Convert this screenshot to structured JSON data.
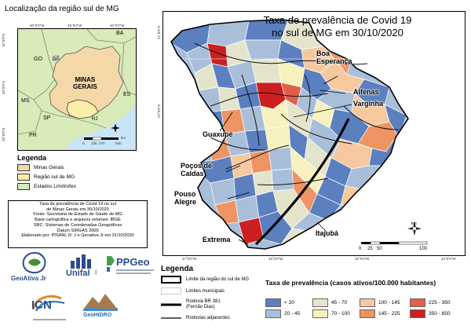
{
  "inset": {
    "title": "Localização da região sul de MG",
    "coords_top": [
      "50°0'0\"W",
      "45°0'0\"W",
      "40°0'0\"W"
    ],
    "coords_left": [
      "15°0'0\"S",
      "20°0'0\"S",
      "25°0'0\"S"
    ],
    "state_labels": {
      "ba": "BA",
      "go": "GO",
      "df": "DF",
      "es": "ES",
      "ms": "MS",
      "sp": "SP",
      "rj": "RJ",
      "pr": "PR",
      "mg": "MINAS\nGERAIS"
    },
    "scale_ticks": [
      "0",
      "135",
      "270",
      "540"
    ],
    "scale_unit": "km"
  },
  "legend_left": {
    "title": "Legenda",
    "items": [
      {
        "label": "Minas Gerais",
        "color": "#f5d8a8"
      },
      {
        "label": "Região sul de MG",
        "color": "#fbeea8"
      },
      {
        "label": "Estados Limítrofes",
        "color": "#d8ebb8"
      }
    ]
  },
  "notes": {
    "lines": [
      "Taxa de prevalência de Covid 19 no sul",
      "de Minas Gerais em 30/10/2020",
      "Fonte: Secretaria de Estado de Saúde de MG",
      "Base cartográfica e arquivos vetoriais: IBGE",
      "SRC: Sistemas de Coordenadas Geográficas",
      "Datum SIRGAS 2000",
      "Elaborado por: PISANI, R. J e Geoativa Jr em 31/10/2020"
    ]
  },
  "logos": {
    "geoativa": "GeoAtiva Jr",
    "unifal": "Unifal",
    "unifal_mg": "MG",
    "ppgeo": "PPGeo",
    "icn": "ICN",
    "geohidro": "GeoHIDRO"
  },
  "map": {
    "title_line1": "Taxa de prevalência de Covid 19",
    "title_line2": "no sul de MG em 30/10/2020",
    "cities": {
      "boa_esperanca": "Boa\nEsperança",
      "alfenas": "Alfenas",
      "varginha": "Varginha",
      "guaxupe": "Guaxupé",
      "pocos": "Poços de\nCaldas",
      "pouso_alegre": "Pouso\nAlegre",
      "extrema": "Extrema",
      "itajuba": "Itajubá"
    },
    "coords_bottom": [
      "47°0'0\"W",
      "46°0'0\"W",
      "45°0'0\"W",
      "44°0'0\"W"
    ],
    "coords_left": [
      "21°0'0\"S",
      "22°0'0\"S"
    ],
    "scale_ticks": [
      "0",
      "25",
      "50",
      "100"
    ],
    "scale_unit": "km",
    "north": "N"
  },
  "legend_bottom": {
    "title": "Legenda",
    "limit_label": "Limite da região do sul de MG",
    "mun_label": "Limites municipais",
    "br_label": "Rodovia BR 381\n(Fernão Dias)",
    "roads_label": "Rodovias adjacentes",
    "prev_title": "Taxa de prevalência (casos ativos/100.000 habitantes)",
    "classes": [
      {
        "label": "< 20",
        "color": "#5b7fbf"
      },
      {
        "label": "20 - 45",
        "color": "#a9bfd9"
      },
      {
        "label": "45 - 70",
        "color": "#e4e4cc"
      },
      {
        "label": "70 - 100",
        "color": "#f7f1bf"
      },
      {
        "label": "100 - 145",
        "color": "#f6c8a0"
      },
      {
        "label": "145 - 225",
        "color": "#ee9464"
      },
      {
        "label": "225 - 350",
        "color": "#e35e4a"
      },
      {
        "label": "350 - 650",
        "color": "#cc2020"
      }
    ]
  }
}
